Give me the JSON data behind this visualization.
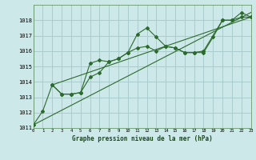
{
  "title": "Graphe pression niveau de la mer (hPa)",
  "bg_color": "#cce8e8",
  "grid_color": "#aacccc",
  "line_color": "#2d6a2d",
  "xlim": [
    0,
    23
  ],
  "ylim": [
    1011,
    1019
  ],
  "xticks": [
    0,
    1,
    2,
    3,
    4,
    5,
    6,
    7,
    8,
    9,
    10,
    11,
    12,
    13,
    14,
    15,
    16,
    17,
    18,
    19,
    20,
    21,
    22,
    23
  ],
  "yticks": [
    1011,
    1012,
    1013,
    1014,
    1015,
    1016,
    1017,
    1018
  ],
  "line1_x": [
    0,
    1,
    2,
    3,
    4,
    5,
    6,
    7,
    8,
    9,
    10,
    11,
    12,
    13,
    14,
    15,
    16,
    17,
    18,
    19,
    20,
    21,
    22,
    23
  ],
  "line1_y": [
    1011.2,
    1012.1,
    1013.8,
    1013.2,
    1013.2,
    1013.3,
    1014.3,
    1014.6,
    1015.3,
    1015.5,
    1015.9,
    1017.1,
    1017.5,
    1016.9,
    1016.3,
    1016.2,
    1015.9,
    1015.9,
    1015.9,
    1016.9,
    1018.0,
    1018.0,
    1018.2,
    1018.2
  ],
  "line2_x": [
    2,
    3,
    4,
    5,
    6,
    7,
    8,
    9,
    10,
    11,
    12,
    13,
    14,
    15,
    16,
    17,
    18,
    20,
    21,
    22,
    23
  ],
  "line2_y": [
    1013.8,
    1013.2,
    1013.2,
    1013.3,
    1015.2,
    1015.4,
    1015.3,
    1015.5,
    1015.9,
    1016.2,
    1016.3,
    1016.0,
    1016.3,
    1016.2,
    1015.9,
    1015.9,
    1016.0,
    1018.0,
    1018.0,
    1018.5,
    1018.2
  ],
  "line3_x": [
    0,
    23
  ],
  "line3_y": [
    1011.2,
    1018.5
  ],
  "line4_x": [
    2,
    23
  ],
  "line4_y": [
    1013.8,
    1018.2
  ]
}
